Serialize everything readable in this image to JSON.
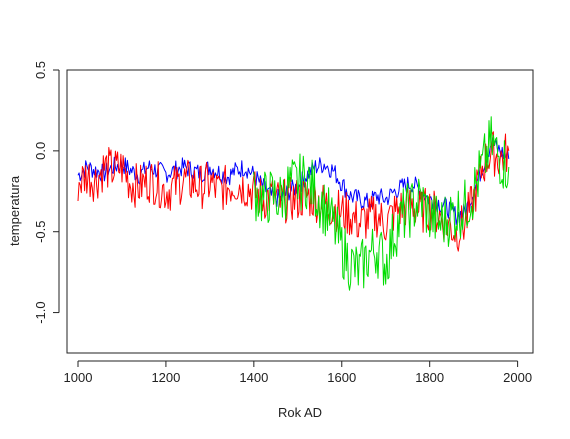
{
  "chart_data": {
    "type": "line",
    "title": "",
    "xlabel": "Rok AD",
    "ylabel": "temperatura",
    "xlim": [
      975,
      2035
    ],
    "ylim": [
      -1.25,
      0.5
    ],
    "x_ticks": [
      1000,
      1200,
      1400,
      1600,
      1800,
      2000
    ],
    "x_tick_labels": [
      "1000",
      "1200",
      "1400",
      "1600",
      "1800",
      "2000"
    ],
    "y_ticks": [
      -1.0,
      -0.5,
      0.0,
      0.5
    ],
    "y_tick_labels": [
      "-1.0",
      "-0.5",
      "0.0",
      "0.5"
    ],
    "grid": false,
    "legend": "none",
    "series": [
      {
        "color": "#0000ff",
        "x": [
          1000,
          1020,
          1040,
          1060,
          1080,
          1100,
          1120,
          1140,
          1160,
          1180,
          1200,
          1220,
          1240,
          1260,
          1280,
          1300,
          1320,
          1340,
          1360,
          1380,
          1400,
          1420,
          1440,
          1460,
          1480,
          1500,
          1520,
          1540,
          1560,
          1580,
          1600,
          1620,
          1640,
          1660,
          1680,
          1700,
          1720,
          1740,
          1760,
          1780,
          1800,
          1820,
          1840,
          1860,
          1880,
          1900,
          1920,
          1940,
          1960,
          1980
        ],
        "values": [
          -0.15,
          -0.1,
          -0.12,
          -0.14,
          -0.1,
          -0.08,
          -0.12,
          -0.15,
          -0.1,
          -0.12,
          -0.14,
          -0.12,
          -0.1,
          -0.12,
          -0.14,
          -0.1,
          -0.13,
          -0.16,
          -0.12,
          -0.1,
          -0.15,
          -0.22,
          -0.28,
          -0.3,
          -0.25,
          -0.22,
          -0.15,
          -0.1,
          -0.08,
          -0.12,
          -0.2,
          -0.28,
          -0.3,
          -0.32,
          -0.28,
          -0.3,
          -0.25,
          -0.22,
          -0.2,
          -0.25,
          -0.3,
          -0.32,
          -0.35,
          -0.4,
          -0.38,
          -0.25,
          -0.1,
          0.05,
          0.0,
          -0.05
        ]
      },
      {
        "color": "#ff0000",
        "x": [
          1000,
          1020,
          1040,
          1060,
          1080,
          1100,
          1120,
          1140,
          1160,
          1180,
          1200,
          1220,
          1240,
          1260,
          1280,
          1300,
          1320,
          1340,
          1360,
          1380,
          1400,
          1420,
          1440,
          1460,
          1480,
          1500,
          1520,
          1540,
          1560,
          1580,
          1600,
          1620,
          1640,
          1660,
          1680,
          1700,
          1720,
          1740,
          1760,
          1780,
          1800,
          1820,
          1840,
          1860,
          1880,
          1900,
          1920,
          1940,
          1960,
          1980
        ],
        "values": [
          -0.2,
          -0.15,
          -0.18,
          -0.1,
          -0.12,
          -0.1,
          -0.2,
          -0.22,
          -0.18,
          -0.2,
          -0.25,
          -0.22,
          -0.18,
          -0.2,
          -0.22,
          -0.2,
          -0.25,
          -0.22,
          -0.2,
          -0.22,
          -0.25,
          -0.3,
          -0.28,
          -0.32,
          -0.3,
          -0.3,
          -0.28,
          -0.3,
          -0.33,
          -0.35,
          -0.38,
          -0.4,
          -0.45,
          -0.42,
          -0.4,
          -0.45,
          -0.38,
          -0.35,
          -0.33,
          -0.38,
          -0.35,
          -0.4,
          -0.45,
          -0.5,
          -0.45,
          -0.3,
          -0.1,
          0.0,
          -0.05,
          0.0
        ]
      },
      {
        "color": "#00dd00",
        "x": [
          1400,
          1420,
          1440,
          1460,
          1480,
          1500,
          1520,
          1540,
          1560,
          1580,
          1600,
          1620,
          1640,
          1660,
          1680,
          1700,
          1720,
          1740,
          1760,
          1780,
          1800,
          1820,
          1840,
          1860,
          1880,
          1900,
          1920,
          1940,
          1960,
          1980
        ],
        "values": [
          -0.25,
          -0.3,
          -0.28,
          -0.3,
          -0.22,
          -0.2,
          -0.18,
          -0.25,
          -0.35,
          -0.45,
          -0.6,
          -0.7,
          -0.75,
          -0.65,
          -0.6,
          -0.7,
          -0.5,
          -0.4,
          -0.35,
          -0.3,
          -0.4,
          -0.45,
          -0.42,
          -0.38,
          -0.35,
          -0.25,
          -0.1,
          0.05,
          -0.05,
          -0.1
        ]
      }
    ]
  }
}
